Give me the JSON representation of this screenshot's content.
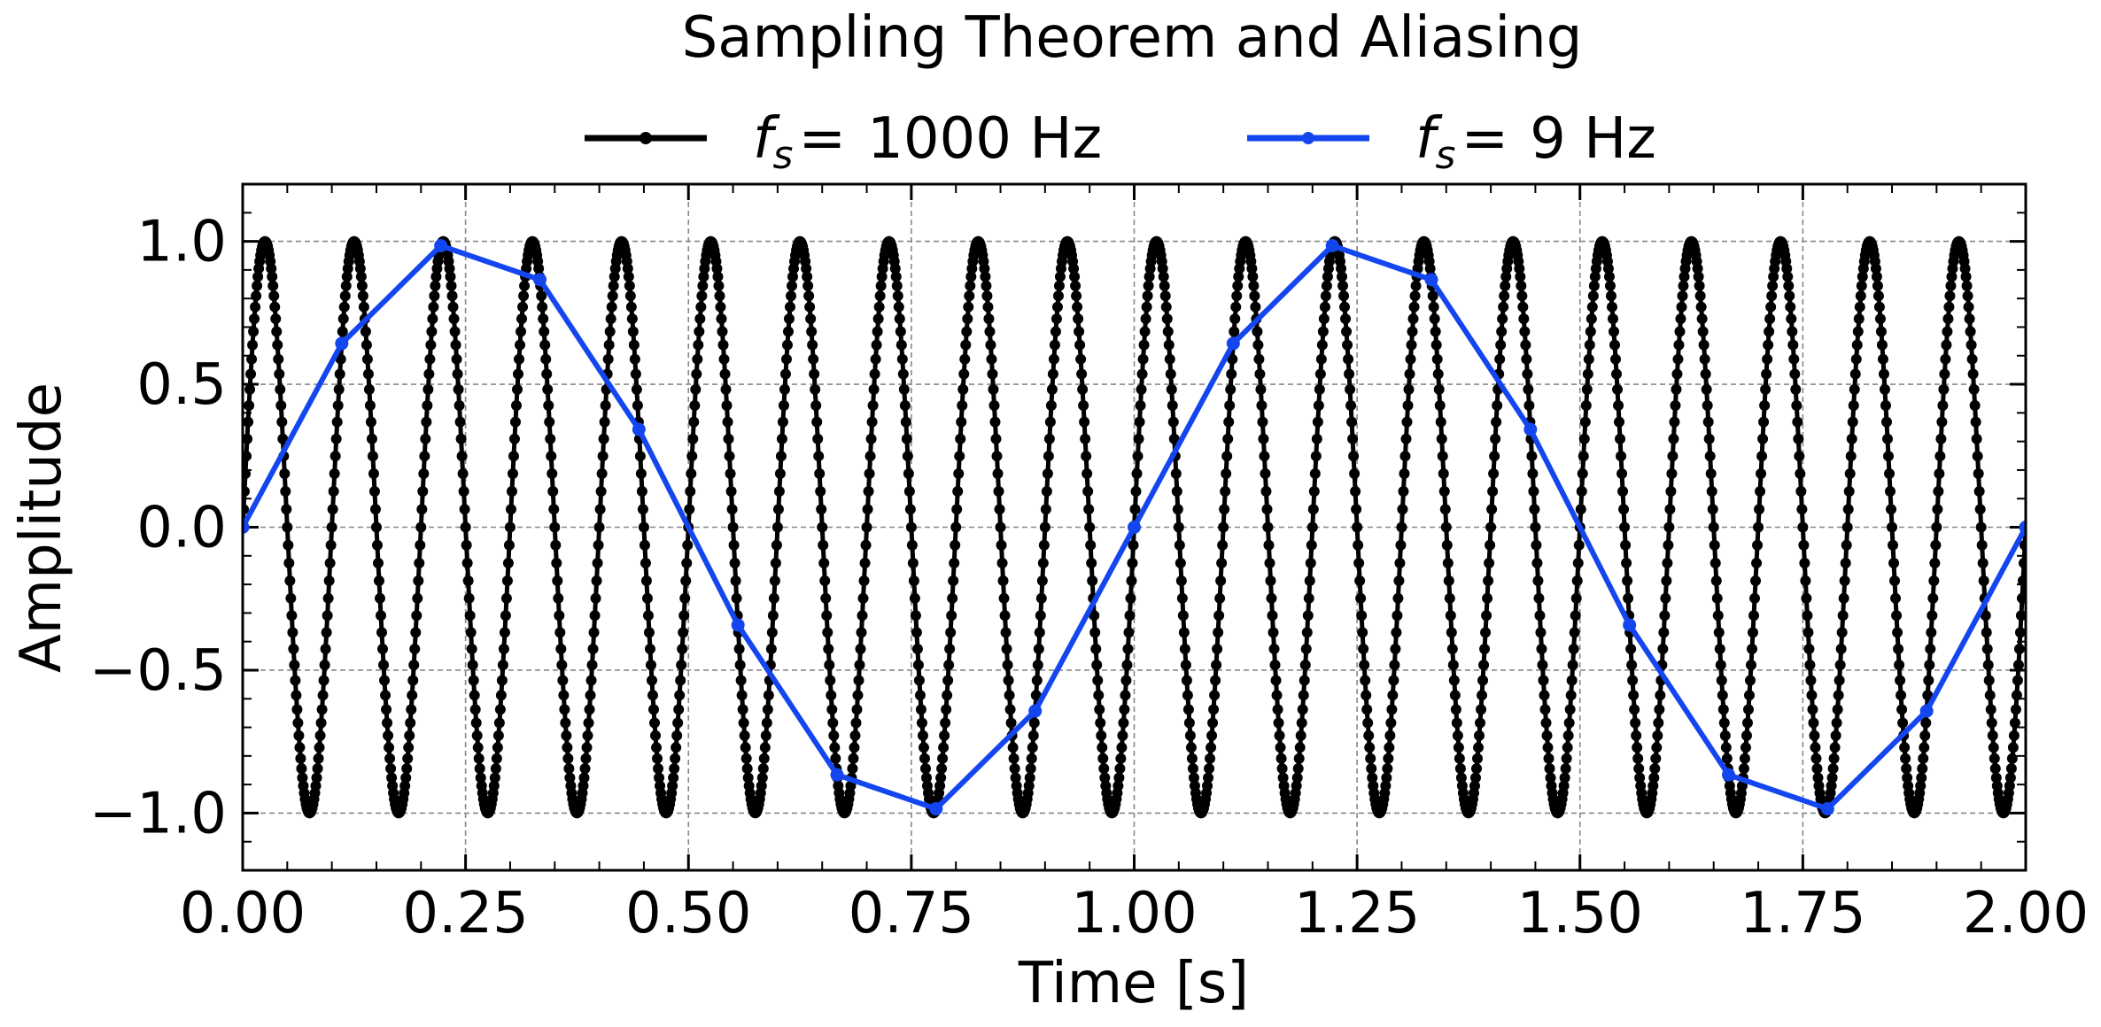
{
  "chart_data": {
    "type": "line",
    "title": "Sampling Theorem and Aliasing",
    "xlabel": "Time [s]",
    "ylabel": "Amplitude",
    "xlim": [
      0,
      2
    ],
    "ylim": [
      -1.2,
      1.2
    ],
    "x_ticks": [
      0,
      0.25,
      0.5,
      0.75,
      1.0,
      1.25,
      1.5,
      1.75,
      2.0
    ],
    "x_tick_labels": [
      "0.00",
      "0.25",
      "0.50",
      "0.75",
      "1.00",
      "1.25",
      "1.50",
      "1.75",
      "2.00"
    ],
    "y_ticks": [
      -1.0,
      -0.5,
      0.0,
      0.5,
      1.0
    ],
    "y_tick_labels": [
      "−1.0",
      "−0.5",
      "0.0",
      "0.5",
      "1.0"
    ],
    "grid": true,
    "legend_position": "top-center, above plot",
    "signal": {
      "frequency_hz": 10,
      "function": "sin"
    },
    "series": [
      {
        "name": "1000 Hz",
        "legend_prefix": "f",
        "legend_subscript": "s",
        "legend_eq": "=",
        "sample_rate_hz": 1000,
        "color": "#000000",
        "marker": "dot"
      },
      {
        "name": "9 Hz",
        "legend_prefix": "f",
        "legend_subscript": "s",
        "legend_eq": "=",
        "sample_rate_hz": 9,
        "color": "#1446f0",
        "marker": "dot"
      }
    ]
  }
}
